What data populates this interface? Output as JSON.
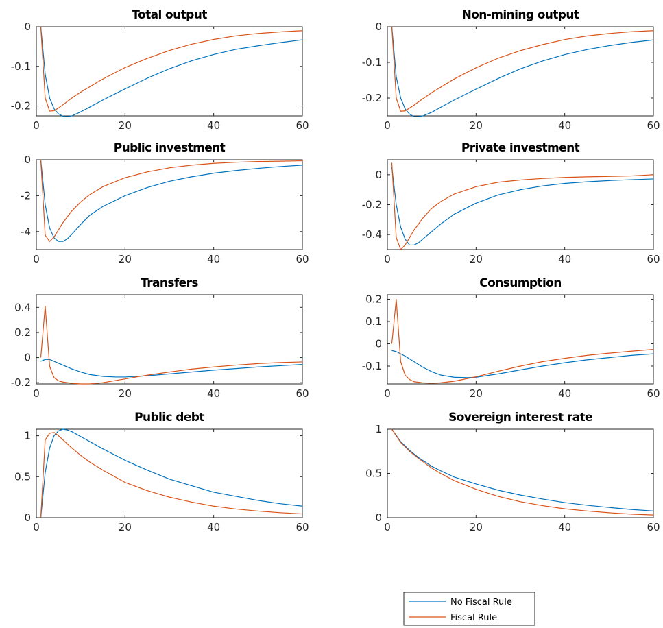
{
  "colors": {
    "no_rule": "#0072BD",
    "rule": "#D95319"
  },
  "legend": [
    {
      "label": "No Fiscal Rule",
      "series": "no_rule"
    },
    {
      "label": "Fiscal Rule",
      "series": "rule"
    }
  ],
  "chart_data": [
    {
      "type": "line",
      "title": "Total output",
      "xlim": [
        0,
        60
      ],
      "ylim": [
        -0.225,
        0
      ],
      "xticks": [
        0,
        20,
        40,
        60
      ],
      "xtick_labels": [
        "0",
        "20",
        "40",
        "60"
      ],
      "yticks": [
        -0.2,
        -0.1,
        0
      ],
      "ytick_labels": [
        "-0.2",
        "-0.1",
        "0"
      ],
      "series": [
        {
          "key": "no_rule",
          "name": "No Fiscal Rule",
          "x": [
            1,
            2,
            3,
            4,
            5,
            6,
            7,
            8,
            10,
            12,
            15,
            20,
            25,
            30,
            35,
            40,
            45,
            50,
            55,
            60
          ],
          "y": [
            0,
            -0.12,
            -0.18,
            -0.207,
            -0.22,
            -0.226,
            -0.227,
            -0.225,
            -0.215,
            -0.203,
            -0.185,
            -0.157,
            -0.13,
            -0.106,
            -0.086,
            -0.07,
            -0.057,
            -0.048,
            -0.04,
            -0.033
          ]
        },
        {
          "key": "rule",
          "name": "Fiscal Rule",
          "x": [
            1,
            2,
            3,
            4,
            5,
            6,
            8,
            10,
            15,
            20,
            25,
            30,
            35,
            40,
            45,
            50,
            55,
            60
          ],
          "y": [
            0,
            -0.18,
            -0.213,
            -0.212,
            -0.205,
            -0.197,
            -0.18,
            -0.165,
            -0.132,
            -0.103,
            -0.08,
            -0.06,
            -0.044,
            -0.032,
            -0.023,
            -0.017,
            -0.013,
            -0.01
          ]
        }
      ]
    },
    {
      "type": "line",
      "title": "Non-mining output",
      "xlim": [
        0,
        60
      ],
      "ylim": [
        -0.25,
        0
      ],
      "xticks": [
        0,
        20,
        40,
        60
      ],
      "xtick_labels": [
        "0",
        "20",
        "40",
        "60"
      ],
      "yticks": [
        -0.2,
        -0.1,
        0
      ],
      "ytick_labels": [
        "-0.2",
        "-0.1",
        "0"
      ],
      "series": [
        {
          "key": "no_rule",
          "name": "No Fiscal Rule",
          "x": [
            1,
            2,
            3,
            4,
            5,
            6,
            7,
            8,
            10,
            12,
            15,
            20,
            25,
            30,
            35,
            40,
            45,
            50,
            55,
            60
          ],
          "y": [
            0,
            -0.14,
            -0.2,
            -0.23,
            -0.245,
            -0.252,
            -0.252,
            -0.25,
            -0.24,
            -0.226,
            -0.206,
            -0.175,
            -0.145,
            -0.118,
            -0.096,
            -0.078,
            -0.064,
            -0.053,
            -0.044,
            -0.037
          ]
        },
        {
          "key": "rule",
          "name": "Fiscal Rule",
          "x": [
            1,
            2,
            3,
            4,
            5,
            6,
            8,
            10,
            15,
            20,
            25,
            30,
            35,
            40,
            45,
            50,
            55,
            60
          ],
          "y": [
            0,
            -0.2,
            -0.237,
            -0.236,
            -0.228,
            -0.22,
            -0.202,
            -0.185,
            -0.147,
            -0.115,
            -0.088,
            -0.067,
            -0.05,
            -0.036,
            -0.026,
            -0.019,
            -0.014,
            -0.011
          ]
        }
      ]
    },
    {
      "type": "line",
      "title": "Public investment",
      "xlim": [
        0,
        60
      ],
      "ylim": [
        -5,
        0
      ],
      "xticks": [
        0,
        20,
        40,
        60
      ],
      "xtick_labels": [
        "0",
        "20",
        "40",
        "60"
      ],
      "yticks": [
        -4,
        -2,
        0
      ],
      "ytick_labels": [
        "-4",
        "-2",
        "0"
      ],
      "series": [
        {
          "key": "no_rule",
          "name": "No Fiscal Rule",
          "x": [
            1,
            2,
            3,
            4,
            5,
            6,
            7,
            8,
            10,
            12,
            15,
            20,
            25,
            30,
            35,
            40,
            45,
            50,
            55,
            60
          ],
          "y": [
            0,
            -2.5,
            -3.8,
            -4.35,
            -4.55,
            -4.55,
            -4.4,
            -4.15,
            -3.6,
            -3.1,
            -2.6,
            -2.0,
            -1.55,
            -1.2,
            -0.95,
            -0.75,
            -0.6,
            -0.48,
            -0.38,
            -0.3
          ]
        },
        {
          "key": "rule",
          "name": "Fiscal Rule",
          "x": [
            1,
            2,
            3,
            4,
            5,
            6,
            8,
            10,
            12,
            15,
            20,
            25,
            30,
            35,
            40,
            45,
            50,
            55,
            60
          ],
          "y": [
            0,
            -4.2,
            -4.55,
            -4.3,
            -3.9,
            -3.5,
            -2.85,
            -2.35,
            -1.95,
            -1.5,
            -1.0,
            -0.68,
            -0.45,
            -0.3,
            -0.2,
            -0.14,
            -0.1,
            -0.08,
            -0.06
          ]
        }
      ]
    },
    {
      "type": "line",
      "title": "Private investment",
      "xlim": [
        0,
        60
      ],
      "ylim": [
        -0.5,
        0.1
      ],
      "xticks": [
        0,
        20,
        40,
        60
      ],
      "xtick_labels": [
        "0",
        "20",
        "40",
        "60"
      ],
      "yticks": [
        -0.4,
        -0.2,
        0
      ],
      "ytick_labels": [
        "-0.4",
        "-0.2",
        "0"
      ],
      "series": [
        {
          "key": "no_rule",
          "name": "No Fiscal Rule",
          "x": [
            1,
            2,
            3,
            4,
            5,
            6,
            7,
            8,
            10,
            12,
            15,
            20,
            25,
            30,
            35,
            40,
            45,
            50,
            55,
            60
          ],
          "y": [
            0.05,
            -0.2,
            -0.35,
            -0.43,
            -0.47,
            -0.47,
            -0.455,
            -0.43,
            -0.38,
            -0.33,
            -0.265,
            -0.19,
            -0.135,
            -0.1,
            -0.075,
            -0.058,
            -0.047,
            -0.039,
            -0.033,
            -0.028
          ]
        },
        {
          "key": "rule",
          "name": "Fiscal Rule",
          "x": [
            1,
            2,
            3,
            4,
            5,
            6,
            8,
            10,
            12,
            15,
            20,
            25,
            30,
            35,
            40,
            45,
            50,
            55,
            60
          ],
          "y": [
            0.08,
            -0.42,
            -0.5,
            -0.47,
            -0.42,
            -0.37,
            -0.29,
            -0.225,
            -0.18,
            -0.13,
            -0.08,
            -0.05,
            -0.035,
            -0.025,
            -0.018,
            -0.014,
            -0.011,
            -0.008,
            0.0
          ]
        }
      ]
    },
    {
      "type": "line",
      "title": "Transfers",
      "xlim": [
        0,
        60
      ],
      "ylim": [
        -0.21,
        0.5
      ],
      "xticks": [
        0,
        20,
        40,
        60
      ],
      "xtick_labels": [
        "0",
        "20",
        "40",
        "60"
      ],
      "yticks": [
        -0.2,
        0,
        0.2,
        0.4
      ],
      "ytick_labels": [
        "-0.2",
        "0",
        "0.2",
        "0.4"
      ],
      "series": [
        {
          "key": "no_rule",
          "name": "No Fiscal Rule",
          "x": [
            1,
            2,
            3,
            4,
            6,
            8,
            10,
            12,
            15,
            18,
            20,
            25,
            30,
            35,
            40,
            45,
            50,
            55,
            60
          ],
          "y": [
            -0.03,
            -0.015,
            -0.015,
            -0.03,
            -0.06,
            -0.09,
            -0.115,
            -0.135,
            -0.15,
            -0.155,
            -0.155,
            -0.145,
            -0.13,
            -0.115,
            -0.1,
            -0.088,
            -0.075,
            -0.065,
            -0.055
          ]
        },
        {
          "key": "rule",
          "name": "Fiscal Rule",
          "x": [
            1,
            2,
            3,
            4,
            5,
            6,
            8,
            10,
            12,
            15,
            20,
            25,
            30,
            35,
            40,
            45,
            50,
            55,
            60
          ],
          "y": [
            0.0,
            0.41,
            -0.07,
            -0.16,
            -0.185,
            -0.195,
            -0.205,
            -0.21,
            -0.21,
            -0.2,
            -0.17,
            -0.14,
            -0.115,
            -0.092,
            -0.075,
            -0.06,
            -0.048,
            -0.04,
            -0.035
          ]
        }
      ]
    },
    {
      "type": "line",
      "title": "Consumption",
      "xlim": [
        0,
        60
      ],
      "ylim": [
        -0.18,
        0.22
      ],
      "xticks": [
        0,
        20,
        40,
        60
      ],
      "xtick_labels": [
        "0",
        "20",
        "40",
        "60"
      ],
      "yticks": [
        -0.1,
        0,
        0.1,
        0.2
      ],
      "ytick_labels": [
        "-0.1",
        "0",
        "0.1",
        "0.2"
      ],
      "series": [
        {
          "key": "no_rule",
          "name": "No Fiscal Rule",
          "x": [
            1,
            2,
            4,
            6,
            8,
            10,
            12,
            15,
            18,
            20,
            25,
            30,
            35,
            40,
            45,
            50,
            55,
            60
          ],
          "y": [
            -0.03,
            -0.035,
            -0.055,
            -0.08,
            -0.105,
            -0.125,
            -0.14,
            -0.15,
            -0.152,
            -0.15,
            -0.135,
            -0.117,
            -0.1,
            -0.085,
            -0.072,
            -0.062,
            -0.052,
            -0.045
          ]
        },
        {
          "key": "rule",
          "name": "Fiscal Rule",
          "x": [
            1,
            2,
            3,
            4,
            5,
            6,
            8,
            10,
            12,
            15,
            20,
            25,
            30,
            35,
            40,
            45,
            50,
            55,
            60
          ],
          "y": [
            0.0,
            0.2,
            -0.08,
            -0.14,
            -0.16,
            -0.17,
            -0.175,
            -0.177,
            -0.175,
            -0.168,
            -0.148,
            -0.123,
            -0.1,
            -0.08,
            -0.065,
            -0.052,
            -0.042,
            -0.033,
            -0.025
          ]
        }
      ]
    },
    {
      "type": "line",
      "title": "Public debt",
      "xlim": [
        0,
        60
      ],
      "ylim": [
        0,
        1.08
      ],
      "xticks": [
        0,
        20,
        40,
        60
      ],
      "xtick_labels": [
        "0",
        "20",
        "40",
        "60"
      ],
      "yticks": [
        0,
        0.5,
        1
      ],
      "ytick_labels": [
        "0",
        "0.5",
        "1"
      ],
      "series": [
        {
          "key": "no_rule",
          "name": "No Fiscal Rule",
          "x": [
            1,
            2,
            3,
            4,
            5,
            6,
            7,
            8,
            10,
            12,
            15,
            20,
            25,
            30,
            35,
            40,
            45,
            50,
            55,
            60
          ],
          "y": [
            0,
            0.55,
            0.85,
            1.0,
            1.06,
            1.08,
            1.07,
            1.05,
            0.99,
            0.93,
            0.84,
            0.7,
            0.58,
            0.47,
            0.39,
            0.31,
            0.26,
            0.21,
            0.17,
            0.14
          ]
        },
        {
          "key": "rule",
          "name": "Fiscal Rule",
          "x": [
            1,
            2,
            3,
            4,
            5,
            6,
            8,
            10,
            12,
            15,
            20,
            25,
            30,
            35,
            40,
            45,
            50,
            55,
            60
          ],
          "y": [
            0,
            0.95,
            1.03,
            1.04,
            1.0,
            0.95,
            0.85,
            0.76,
            0.68,
            0.58,
            0.43,
            0.33,
            0.25,
            0.19,
            0.14,
            0.105,
            0.08,
            0.06,
            0.045
          ]
        }
      ]
    },
    {
      "type": "line",
      "title": "Sovereign interest rate",
      "xlim": [
        0,
        60
      ],
      "ylim": [
        0,
        1
      ],
      "xticks": [
        0,
        20,
        40,
        60
      ],
      "xtick_labels": [
        "0",
        "20",
        "40",
        "60"
      ],
      "yticks": [
        0,
        0.5,
        1
      ],
      "ytick_labels": [
        "0",
        "0.5",
        "1"
      ],
      "series": [
        {
          "key": "no_rule",
          "name": "No Fiscal Rule",
          "x": [
            1,
            3,
            5,
            7,
            10,
            12,
            15,
            20,
            25,
            30,
            35,
            40,
            45,
            50,
            55,
            60
          ],
          "y": [
            1.0,
            0.86,
            0.76,
            0.68,
            0.58,
            0.53,
            0.46,
            0.38,
            0.31,
            0.255,
            0.21,
            0.17,
            0.14,
            0.115,
            0.092,
            0.075
          ]
        },
        {
          "key": "rule",
          "name": "Fiscal Rule",
          "x": [
            1,
            3,
            5,
            7,
            10,
            12,
            15,
            20,
            25,
            30,
            35,
            40,
            45,
            50,
            55,
            60
          ],
          "y": [
            1.0,
            0.85,
            0.75,
            0.67,
            0.56,
            0.5,
            0.42,
            0.32,
            0.24,
            0.18,
            0.135,
            0.1,
            0.075,
            0.055,
            0.04,
            0.03
          ]
        }
      ]
    }
  ]
}
